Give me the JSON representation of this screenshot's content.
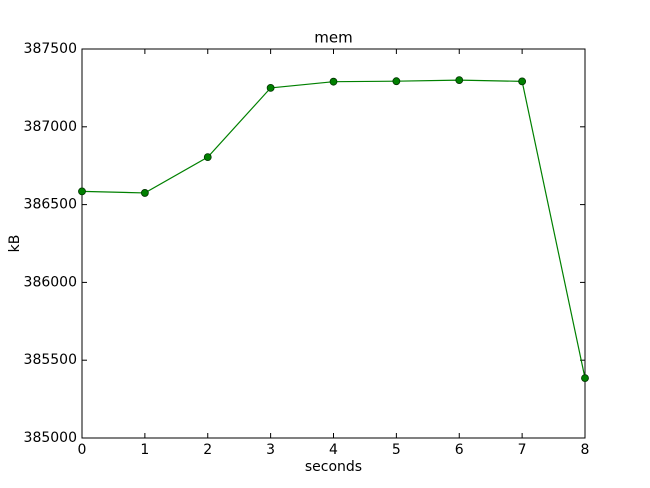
{
  "chart_data": {
    "type": "line",
    "title": "mem",
    "x_label": "seconds",
    "y_label": "kB",
    "x": [
      0,
      1,
      2,
      3,
      4,
      5,
      6,
      7,
      8
    ],
    "series": [
      {
        "name": "mem",
        "color": "#008000",
        "values": [
          386585,
          386575,
          386805,
          387250,
          387290,
          387293,
          387300,
          387292,
          385385
        ]
      }
    ],
    "xlim": [
      0,
      8
    ],
    "xticks": [
      0,
      1,
      2,
      3,
      4,
      5,
      6,
      7,
      8
    ],
    "ylim": [
      385000,
      387500
    ],
    "yticks": [
      385000,
      385500,
      386000,
      386500,
      387000,
      387500
    ],
    "grid": false
  }
}
